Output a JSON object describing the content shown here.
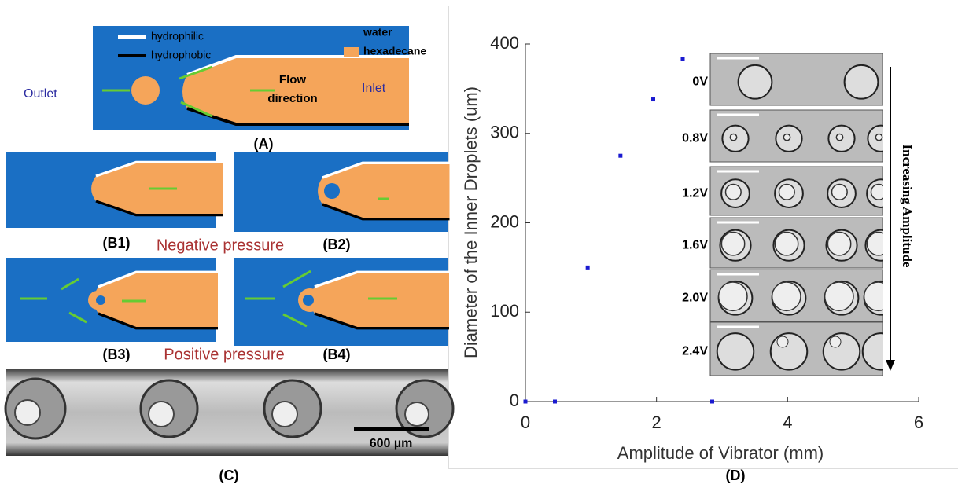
{
  "panels": {
    "A": {
      "label": "(A)",
      "legend": [
        "hydrophilic",
        "hydrophobic",
        "water",
        "hexadecane"
      ],
      "outlet": "Outlet",
      "flow": [
        "Flow",
        "direction"
      ],
      "inlet": "Inlet"
    },
    "B": {
      "labels": [
        "(B1)",
        "(B2)",
        "(B3)",
        "(B4)"
      ],
      "negative": "Negative pressure",
      "positive": "Positive pressure"
    },
    "C": {
      "label": "(C)",
      "scale_bar": "600 µm"
    },
    "D": {
      "label": "(D)"
    },
    "inset": {
      "voltages": [
        "0V",
        "0.8V",
        "1.2V",
        "1.6V",
        "2.0V",
        "2.4V"
      ],
      "arrow_label": "Increasing Amplitude"
    }
  },
  "chart_data": {
    "type": "scatter",
    "x_label": "Amplitude of Vibrator (mm)",
    "y_label": "Diameter of the Inner Droplets (um)",
    "x": [
      0,
      0.45,
      0.95,
      1.45,
      1.95,
      2.4,
      2.85
    ],
    "values": [
      0,
      0,
      150,
      275,
      338,
      383,
      0
    ],
    "color": "#1a1ad0",
    "xlim": [
      0,
      6
    ],
    "ylim": [
      0,
      400
    ],
    "xticks": [
      0,
      2,
      4,
      6
    ],
    "yticks": [
      0,
      100,
      200,
      300,
      400
    ]
  }
}
